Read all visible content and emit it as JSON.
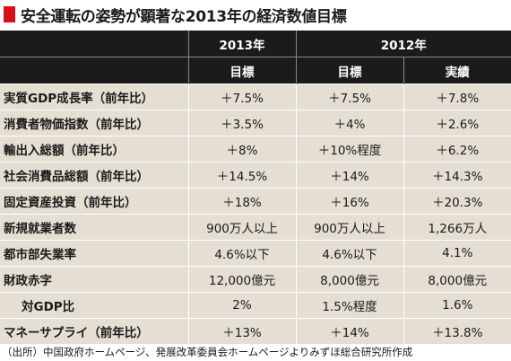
{
  "title": "安全運転の姿勢が顕著な2013年の経済数値目標",
  "header": {
    "year_2013": "2013年",
    "year_2012": "2012年",
    "col_target_2013": "目標",
    "col_target_2012": "目標",
    "col_actual_2012": "実績"
  },
  "rows": [
    {
      "label": "実質GDP成長率（前年比）",
      "t2013": "＋7.5%",
      "t2012": "＋7.5%",
      "a2012": "＋7.8%"
    },
    {
      "label": "消費者物価指数（前年比）",
      "t2013": "＋3.5%",
      "t2012": "＋4%",
      "a2012": "＋2.6%"
    },
    {
      "label": "輸出入総額（前年比）",
      "t2013": "＋8%",
      "t2012": "＋10%程度",
      "a2012": "＋6.2%"
    },
    {
      "label": "社会消費品総額（前年比）",
      "t2013": "＋14.5%",
      "t2012": "＋14%",
      "a2012": "＋14.3%"
    },
    {
      "label": "固定資産投資（前年比）",
      "t2013": "＋18%",
      "t2012": "＋16%",
      "a2012": "＋20.3%"
    },
    {
      "label": "新規就業者数",
      "t2013": "900万人以上",
      "t2012": "900万人以上",
      "a2012": "1,266万人"
    },
    {
      "label": "都市部失業率",
      "t2013": "4.6%以下",
      "t2012": "4.6%以下",
      "a2012": "4.1%"
    },
    {
      "label": "財政赤字",
      "t2013": "12,000億元",
      "t2012": "8,000億元",
      "a2012": "8,000億元"
    },
    {
      "label": "対GDP比",
      "t2013": "2%",
      "t2012": "1.5%程度",
      "a2012": "1.6%"
    },
    {
      "label": "マネーサプライ（前年比）",
      "t2013": "＋13%",
      "t2012": "＋14%",
      "a2012": "＋13.8%"
    }
  ],
  "source": "（出所）中国政府ホームページ、発展改革委員会ホームページよりみずほ総合研究所作成",
  "colors": {
    "accent": "#d7101a",
    "header_bg": "#1b1b1b",
    "cell_bg": "#e4dfd2"
  }
}
